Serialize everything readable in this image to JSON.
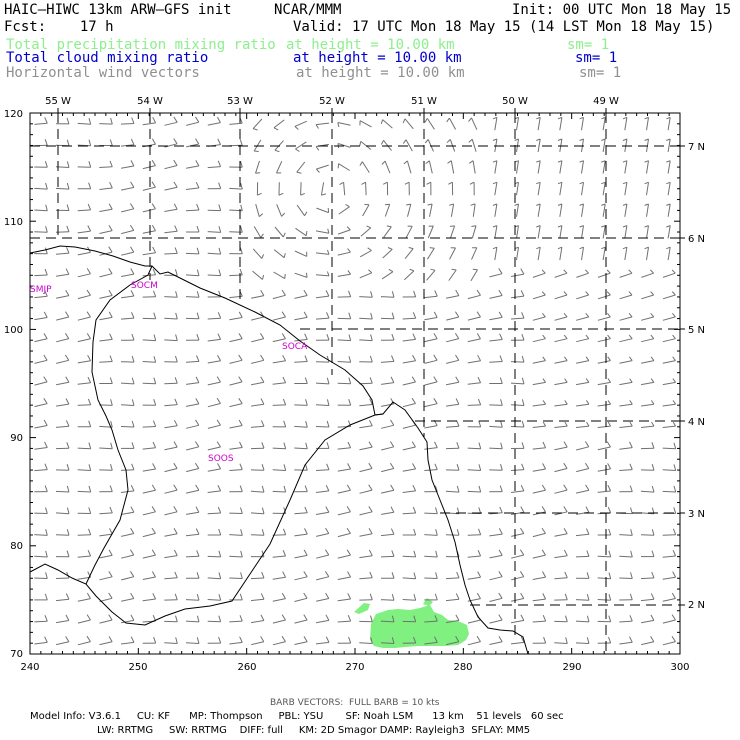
{
  "header": {
    "model": "HAIC–HIWC 13km ARW–GFS init",
    "org": "NCAR/MMM",
    "init": "Init: 00 UTC Mon 18 May 15",
    "fcst": "Fcst:    17 h",
    "valid": "Valid: 17 UTC Mon 18 May 15 (14 LST Mon 18 May 15)"
  },
  "fields": [
    {
      "name": "Total precipitation mixing ratio",
      "height": "at height = 10.00 km",
      "sm": "sm= 1",
      "color": "#8cf08c"
    },
    {
      "name": "Total cloud mixing ratio",
      "height": "at height = 10.00 km",
      "sm": "sm= 1",
      "color": "#0000cc"
    },
    {
      "name": "Horizontal wind vectors",
      "height": "at height = 10.00 km",
      "sm": "sm= 1",
      "color": "#909090"
    }
  ],
  "axes": {
    "x_ticks": [
      "240",
      "250",
      "260",
      "270",
      "280",
      "290",
      "300"
    ],
    "y_ticks": [
      "120",
      "110",
      "100",
      "90",
      "80",
      "70"
    ],
    "lon_labels": [
      "55 W",
      "54 W",
      "53 W",
      "52 W",
      "51 W",
      "50 W",
      "49 W"
    ],
    "lat_labels": [
      "7 N",
      "6 N",
      "5 N",
      "4 N",
      "3 N",
      "2 N"
    ]
  },
  "cities": [
    "SMJP",
    "SOCM",
    "SOCA",
    "SOOS"
  ],
  "colors": {
    "precip": "#80f080",
    "barb": "#707070",
    "city": "#cc00cc"
  },
  "footer": {
    "barb_note": "BARB VECTORS:  FULL BARB = 10 kts",
    "line1": "Model Info: V3.6.1     CU: KF      MP: Thompson     PBL: YSU       SF: Noah LSM      13 km    51 levels   60 sec",
    "line2": "LW: RRTMG     SW: RRTMG    DIFF: full     KM: 2D Smagor DAMP: Rayleigh3  SFLAY: MM5"
  }
}
